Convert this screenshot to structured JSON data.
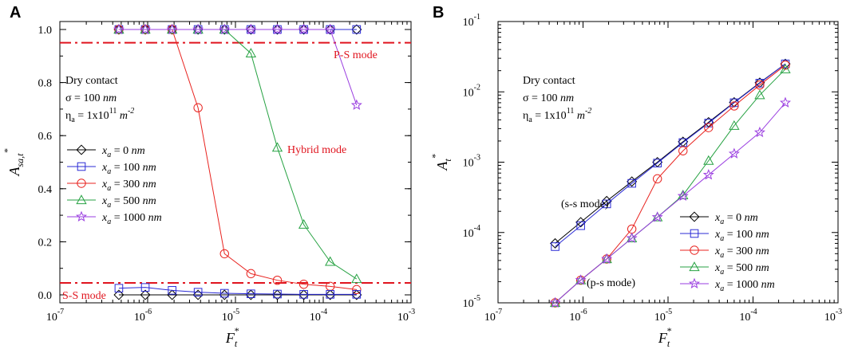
{
  "chart_data": [
    {
      "type": "line",
      "panel_label": "A",
      "xscale": "log",
      "yscale": "linear",
      "xlim": [
        1e-07,
        0.001
      ],
      "ylim": [
        -0.03,
        1.03
      ],
      "x_ticks": [
        {
          "base": "10",
          "exp": "-7",
          "v": 1e-07
        },
        {
          "base": "10",
          "exp": "-6",
          "v": 1e-06
        },
        {
          "base": "10",
          "exp": "-5",
          "v": 1e-05
        },
        {
          "base": "10",
          "exp": "-4",
          "v": 0.0001
        },
        {
          "base": "10",
          "exp": "-3",
          "v": 0.001
        }
      ],
      "y_ticks": [
        {
          "label": "0.0",
          "v": 0.0
        },
        {
          "label": "0.2",
          "v": 0.2
        },
        {
          "label": "0.4",
          "v": 0.4
        },
        {
          "label": "0.6",
          "v": 0.6
        },
        {
          "label": "0.8",
          "v": 0.8
        },
        {
          "label": "1.0",
          "v": 1.0
        }
      ],
      "xlabel": {
        "main": "F",
        "sub": "t",
        "sup": "*"
      },
      "ylabel": {
        "main": "A",
        "sub": "sa,t",
        "sup": "*"
      },
      "annotation": {
        "line1": "Dry contact",
        "line2_prefix": "σ = 100 ",
        "line2_unit": "nm",
        "line3_prefix": "η",
        "line3_sub": "a",
        "line3_mid": " = 1x10",
        "line3_sup": "11",
        "line3_unit": " m",
        "line3_unit_sup": "-2"
      },
      "region_labels": {
        "ps": "P-S mode",
        "hybrid": "Hybrid mode",
        "ss": "S-S mode"
      },
      "ref_lines": [
        0.95,
        0.045
      ],
      "series": [
        {
          "name": "0 nm",
          "color": "#000000",
          "marker": "diamond",
          "x": [
            4.7e-07,
            9.4e-07,
            1.9e-06,
            3.75e-06,
            7.5e-06,
            1.5e-05,
            3e-05,
            6e-05,
            0.00012,
            0.00024
          ],
          "y": [
            1.0,
            1.0,
            1.0,
            1.0,
            1.0,
            1.0,
            1.0,
            1.0,
            1.0,
            1.0
          ]
        },
        {
          "name": "100 nm",
          "color": "#2b2bd6",
          "marker": "square",
          "x": [
            4.7e-07,
            9.4e-07,
            1.9e-06,
            3.75e-06,
            7.5e-06,
            1.5e-05,
            3e-05,
            6e-05,
            0.00012,
            0.00024
          ],
          "y": [
            1.0,
            1.0,
            1.0,
            1.0,
            1.0,
            1.0,
            1.0,
            1.0,
            1.0,
            1.0
          ]
        },
        {
          "name": "300 nm",
          "color": "#e8231f",
          "marker": "circle",
          "x": [
            4.7e-07,
            9.4e-07,
            1.9e-06,
            3.75e-06,
            7.5e-06,
            1.5e-05,
            3e-05,
            6e-05,
            0.00012,
            0.00024
          ],
          "y": [
            1.0,
            1.0,
            1.0,
            0.705,
            0.155,
            0.08,
            0.055,
            0.04,
            0.032,
            0.02
          ]
        },
        {
          "name": "500 nm",
          "color": "#27a243",
          "marker": "triangle",
          "x": [
            4.7e-07,
            9.4e-07,
            1.9e-06,
            3.75e-06,
            7.5e-06,
            1.5e-05,
            3e-05,
            6e-05,
            0.00012,
            0.00024
          ],
          "y": [
            1.0,
            1.0,
            1.0,
            1.0,
            1.0,
            0.91,
            0.555,
            0.265,
            0.125,
            0.06
          ]
        },
        {
          "name": "1000 nm",
          "color": "#9a3ee0",
          "marker": "star",
          "x": [
            4.7e-07,
            9.4e-07,
            1.9e-06,
            3.75e-06,
            7.5e-06,
            1.5e-05,
            3e-05,
            6e-05,
            0.00012,
            0.00024
          ],
          "y": [
            1.0,
            1.0,
            1.0,
            1.0,
            1.0,
            1.0,
            1.0,
            1.0,
            1.0,
            0.715
          ]
        },
        {
          "name": "0 nm (S-S)",
          "color": "#000000",
          "marker": "diamond",
          "legend": false,
          "x": [
            4.7e-07,
            9.4e-07,
            1.9e-06,
            3.75e-06,
            7.5e-06,
            1.5e-05,
            3e-05,
            6e-05,
            0.00012,
            0.00024
          ],
          "y": [
            0.0,
            0.0,
            0.0,
            0.0,
            0.0,
            0.0,
            0.0,
            0.0,
            0.0,
            0.0
          ]
        },
        {
          "name": "100 nm (S-S)",
          "color": "#2b2bd6",
          "marker": "square",
          "legend": false,
          "x": [
            4.7e-07,
            9.4e-07,
            1.9e-06,
            3.75e-06,
            7.5e-06,
            1.5e-05,
            3e-05,
            6e-05,
            0.00012,
            0.00024
          ],
          "y": [
            0.025,
            0.028,
            0.017,
            0.01,
            0.006,
            0.004,
            0.003,
            0.002,
            0.002,
            0.002
          ]
        }
      ]
    },
    {
      "type": "line",
      "panel_label": "B",
      "xscale": "log",
      "yscale": "log",
      "xlim": [
        1e-07,
        0.001
      ],
      "ylim": [
        1e-05,
        0.1
      ],
      "x_ticks": [
        {
          "base": "10",
          "exp": "-7",
          "v": 1e-07
        },
        {
          "base": "10",
          "exp": "-6",
          "v": 1e-06
        },
        {
          "base": "10",
          "exp": "-5",
          "v": 1e-05
        },
        {
          "base": "10",
          "exp": "-4",
          "v": 0.0001
        },
        {
          "base": "10",
          "exp": "-3",
          "v": 0.001
        }
      ],
      "y_ticks": [
        {
          "base": "10",
          "exp": "-5",
          "v": 1e-05
        },
        {
          "base": "10",
          "exp": "-4",
          "v": 0.0001
        },
        {
          "base": "10",
          "exp": "-3",
          "v": 0.001
        },
        {
          "base": "10",
          "exp": "-2",
          "v": 0.01
        },
        {
          "base": "10",
          "exp": "-1",
          "v": 0.1
        }
      ],
      "xlabel": {
        "main": "F",
        "sub": "t",
        "sup": "*"
      },
      "ylabel": {
        "main": "A",
        "sub": "t",
        "sup": "*"
      },
      "annotation": {
        "line1": "Dry contact",
        "line2_prefix": "σ = 100 ",
        "line2_unit": "nm",
        "line3_prefix": "η",
        "line3_sub": "a",
        "line3_mid": " = 1x10",
        "line3_sup": "11",
        "line3_unit": " m",
        "line3_unit_sup": "-2"
      },
      "region_labels": {
        "ss": "(s-s mode)",
        "ps": "(p-s mode)"
      },
      "series": [
        {
          "name": "0 nm",
          "color": "#000000",
          "marker": "diamond",
          "x": [
            4.7e-07,
            9.4e-07,
            1.9e-06,
            3.75e-06,
            7.5e-06,
            1.5e-05,
            3e-05,
            6e-05,
            0.00012,
            0.00024
          ],
          "y": [
            7e-05,
            0.00014,
            0.00028,
            0.00053,
            0.001,
            0.00195,
            0.0037,
            0.0071,
            0.0135,
            0.025
          ]
        },
        {
          "name": "100 nm",
          "color": "#2b2bd6",
          "marker": "square",
          "x": [
            4.7e-07,
            9.4e-07,
            1.9e-06,
            3.75e-06,
            7.5e-06,
            1.5e-05,
            3e-05,
            6e-05,
            0.00012,
            0.00024
          ],
          "y": [
            6.3e-05,
            0.000125,
            0.000255,
            0.0005,
            0.00097,
            0.0019,
            0.0036,
            0.007,
            0.0133,
            0.025
          ]
        },
        {
          "name": "300 nm",
          "color": "#e8231f",
          "marker": "circle",
          "x": [
            4.7e-07,
            9.4e-07,
            1.9e-06,
            3.75e-06,
            7.5e-06,
            1.5e-05,
            3e-05,
            6e-05,
            0.00012,
            0.00024
          ],
          "y": [
            1e-05,
            2.1e-05,
            4.2e-05,
            0.000112,
            0.00058,
            0.00145,
            0.0031,
            0.0063,
            0.0125,
            0.024
          ]
        },
        {
          "name": "500 nm",
          "color": "#27a243",
          "marker": "triangle",
          "x": [
            4.7e-07,
            9.4e-07,
            1.9e-06,
            3.75e-06,
            7.5e-06,
            1.5e-05,
            3e-05,
            6e-05,
            0.00012,
            0.00024
          ],
          "y": [
            1e-05,
            2.1e-05,
            4.2e-05,
            8.3e-05,
            0.000165,
            0.00034,
            0.00105,
            0.0033,
            0.009,
            0.021
          ]
        },
        {
          "name": "1000 nm",
          "color": "#9a3ee0",
          "marker": "star",
          "x": [
            4.7e-07,
            9.4e-07,
            1.9e-06,
            3.75e-06,
            7.5e-06,
            1.5e-05,
            3e-05,
            6e-05,
            0.00012,
            0.00024
          ],
          "y": [
            1e-05,
            2.1e-05,
            4.2e-05,
            8.3e-05,
            0.000165,
            0.00033,
            0.00066,
            0.00132,
            0.00265,
            0.007
          ]
        }
      ]
    }
  ],
  "legend": {
    "var_main": "x",
    "var_sub": "a",
    "units": "nm",
    "labels": [
      "0",
      "100",
      "300",
      "500",
      "1000"
    ]
  }
}
